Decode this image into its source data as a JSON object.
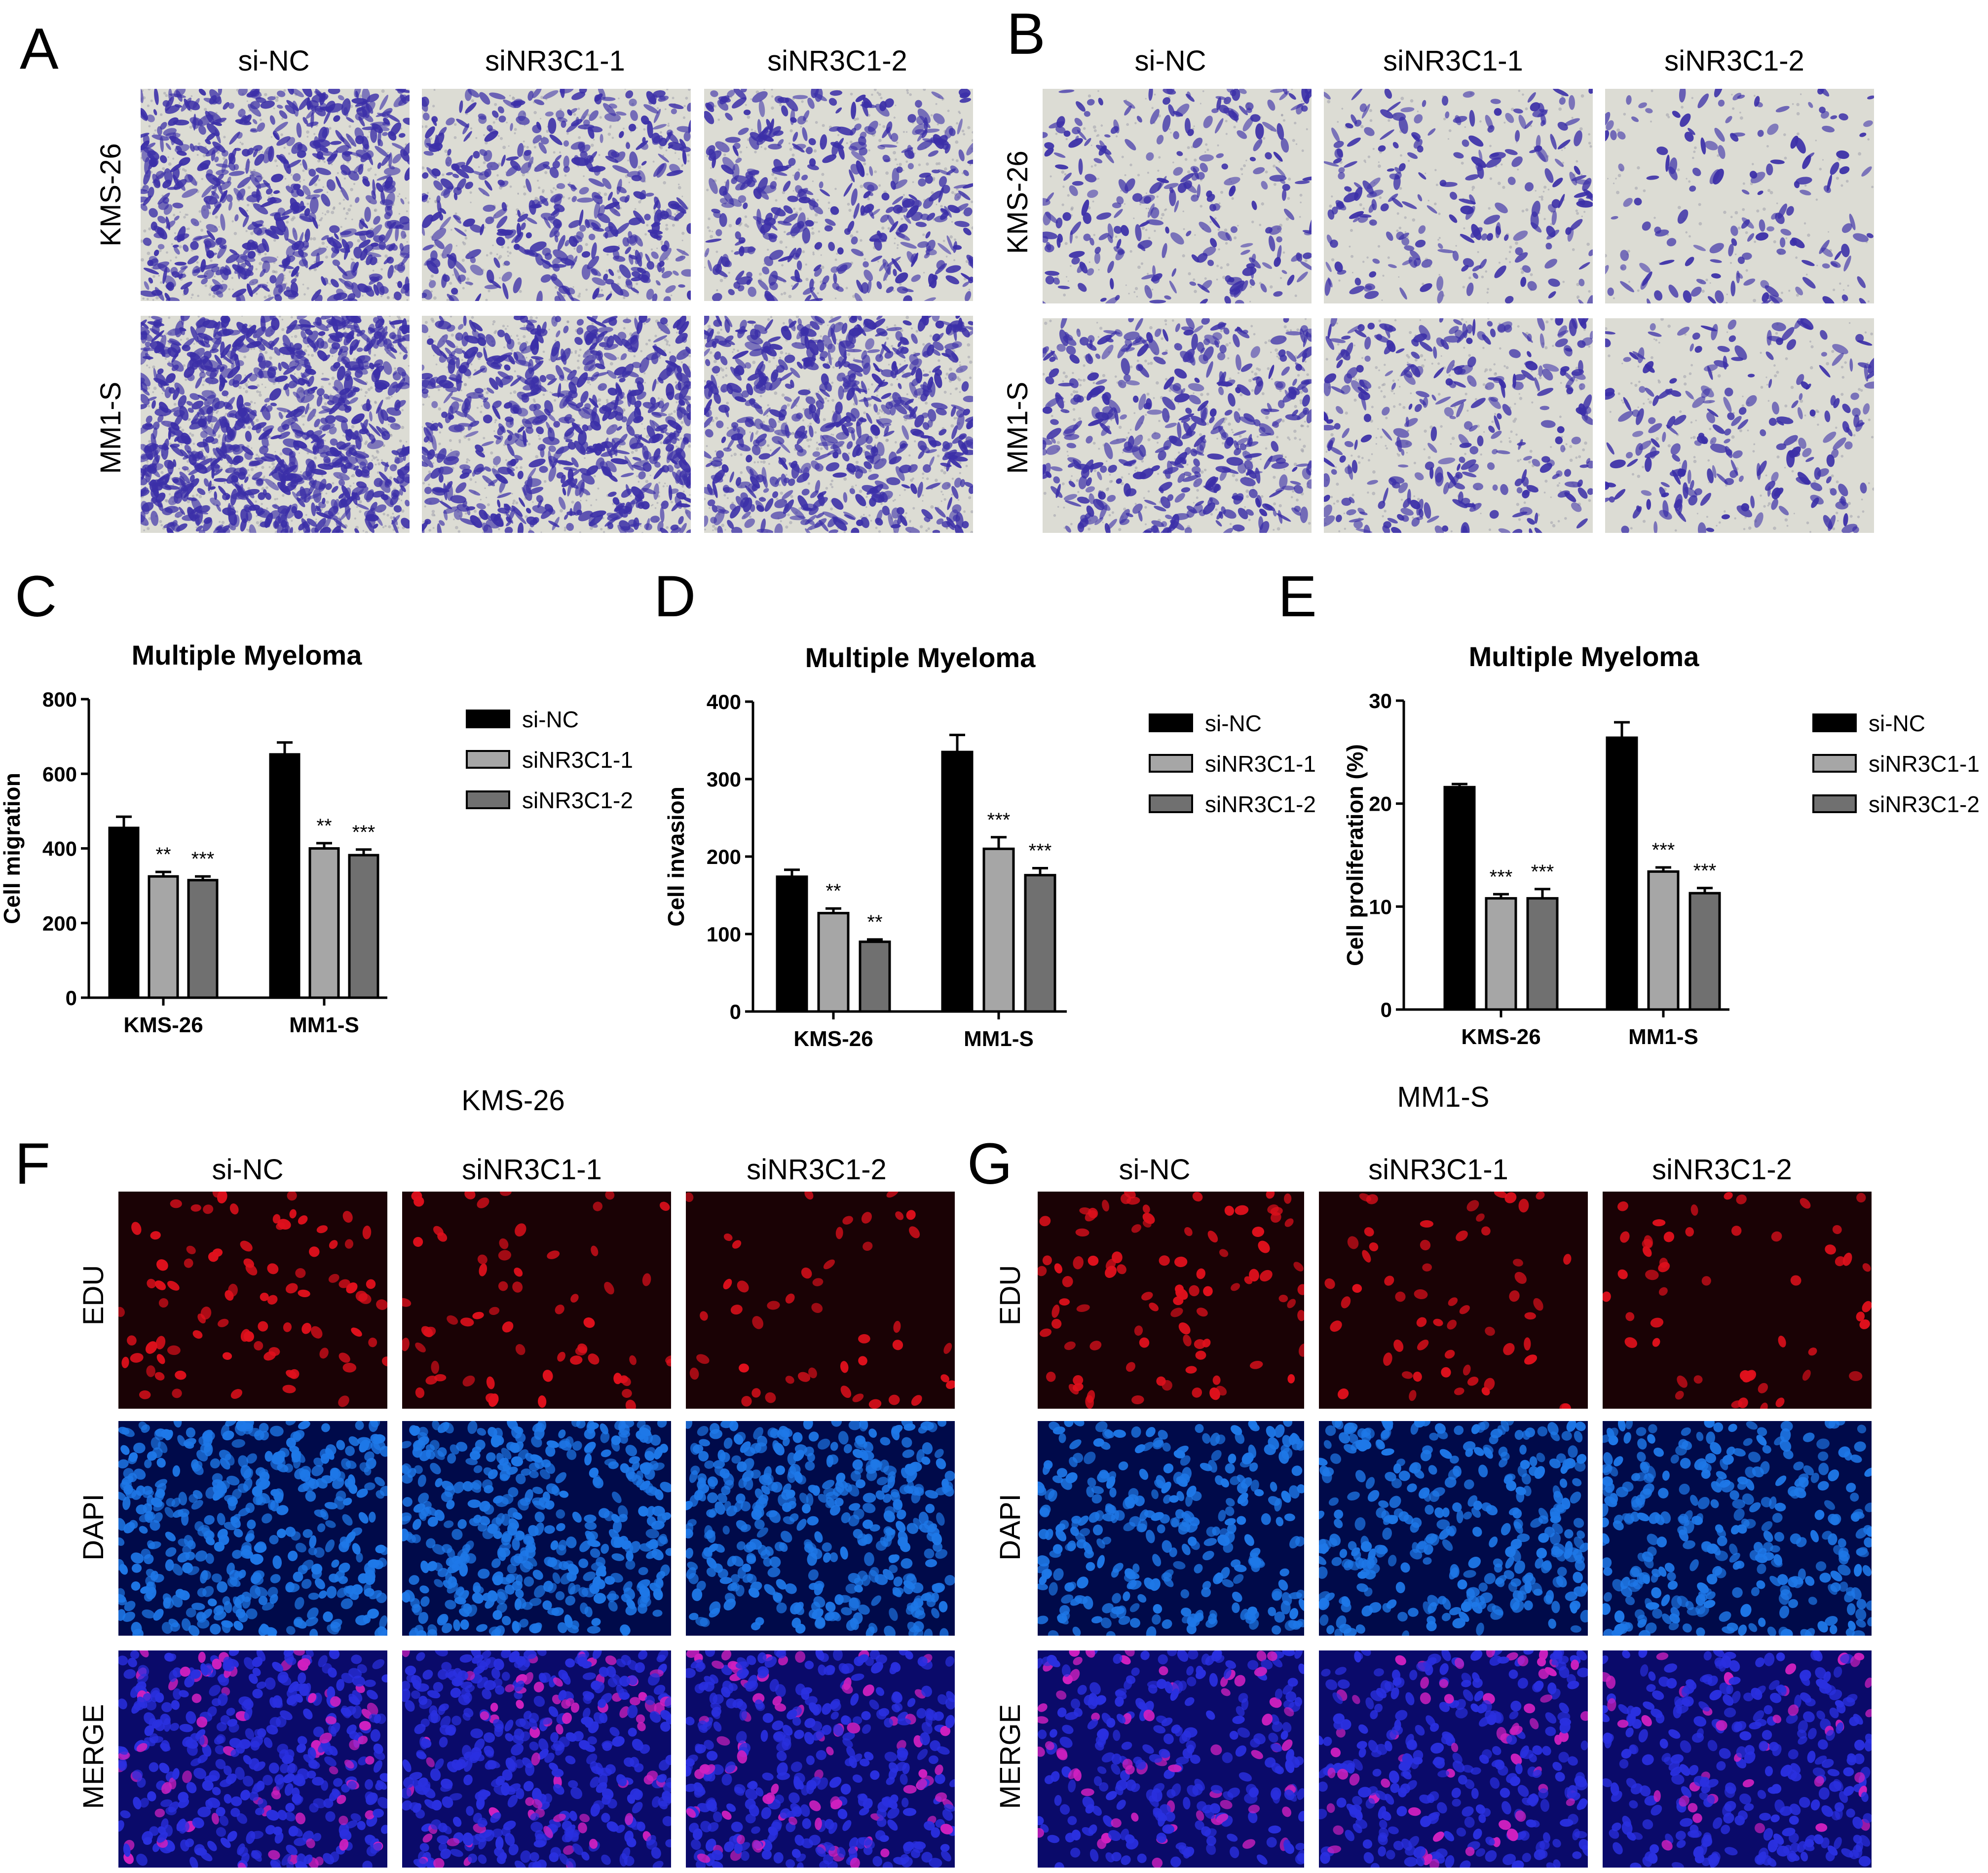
{
  "panels": {
    "A": {
      "letter": "A",
      "columns": [
        "si-NC",
        "siNR3C1-1",
        "siNR3C1-2"
      ],
      "rows": [
        "KMS-26",
        "MM1-S"
      ]
    },
    "B": {
      "letter": "B",
      "columns": [
        "si-NC",
        "siNR3C1-1",
        "siNR3C1-2"
      ],
      "rows": [
        "KMS-26",
        "MM1-S"
      ]
    },
    "C": {
      "letter": "C"
    },
    "D": {
      "letter": "D"
    },
    "E": {
      "letter": "E"
    },
    "F": {
      "letter": "F",
      "group": "KMS-26",
      "columns": [
        "si-NC",
        "siNR3C1-1",
        "siNR3C1-2"
      ],
      "rows": [
        "EDU",
        "DAPI",
        "MERGE"
      ]
    },
    "G": {
      "letter": "G",
      "group": "MM1-S",
      "columns": [
        "si-NC",
        "siNR3C1-1",
        "siNR3C1-2"
      ],
      "rows": [
        "EDU",
        "DAPI",
        "MERGE"
      ]
    }
  },
  "colors": {
    "crystal_violet_bg": "#dcdcd4",
    "crystal_violet_cell": "#3b2fa8",
    "edu_bg": "#1a0205",
    "edu_cell": "#e0101c",
    "dapi_bg": "#000a4a",
    "dapi_cell": "#1e78e8",
    "merge_bg": "#0a0a6a",
    "merge_cell": "#2a30e0",
    "merge_pink": "#d020c0",
    "series_si_nc": "#000000",
    "series_sinr3c1_1": "#a6a6a6",
    "series_sinr3c1_2": "#707070"
  },
  "chart_data": [
    {
      "type": "bar",
      "title": "Multiple Myeloma",
      "ylabel": "Cell migration",
      "xlabel": "",
      "categories": [
        "KMS-26",
        "MM1-S"
      ],
      "ylim": [
        0,
        800
      ],
      "yticks": [
        "0",
        "200",
        "400",
        "600",
        "800"
      ],
      "legend_position": "right",
      "series": [
        {
          "name": "si-NC",
          "values": [
            455,
            652
          ],
          "errors": [
            30,
            32
          ],
          "sig": [
            "",
            ""
          ]
        },
        {
          "name": "siNR3C1-1",
          "values": [
            325,
            400
          ],
          "errors": [
            12,
            14
          ],
          "sig": [
            "**",
            "**"
          ]
        },
        {
          "name": "siNR3C1-2",
          "values": [
            315,
            382
          ],
          "errors": [
            10,
            15
          ],
          "sig": [
            "***",
            "***"
          ]
        }
      ]
    },
    {
      "type": "bar",
      "title": "Multiple Myeloma",
      "ylabel": "Cell invasion",
      "xlabel": "",
      "categories": [
        "KMS-26",
        "MM1-S"
      ],
      "ylim": [
        0,
        400
      ],
      "yticks": [
        "0",
        "100",
        "200",
        "300",
        "400"
      ],
      "legend_position": "right",
      "series": [
        {
          "name": "si-NC",
          "values": [
            174,
            335
          ],
          "errors": [
            9,
            22
          ],
          "sig": [
            "",
            ""
          ]
        },
        {
          "name": "siNR3C1-1",
          "values": [
            127,
            210
          ],
          "errors": [
            6,
            15
          ],
          "sig": [
            "**",
            "***"
          ]
        },
        {
          "name": "siNR3C1-2",
          "values": [
            90,
            176
          ],
          "errors": [
            3,
            9
          ],
          "sig": [
            "**",
            "***"
          ]
        }
      ]
    },
    {
      "type": "bar",
      "title": "Multiple Myeloma",
      "ylabel": "Cell proliferation (%)",
      "xlabel": "",
      "categories": [
        "KMS-26",
        "MM1-S"
      ],
      "ylim": [
        0,
        30
      ],
      "yticks": [
        "0",
        "10",
        "20",
        "30"
      ],
      "legend_position": "right",
      "series": [
        {
          "name": "si-NC",
          "values": [
            21.6,
            26.4
          ],
          "errors": [
            0.3,
            1.5
          ],
          "sig": [
            "",
            ""
          ]
        },
        {
          "name": "siNR3C1-1",
          "values": [
            10.8,
            13.4
          ],
          "errors": [
            0.4,
            0.4
          ],
          "sig": [
            "***",
            "***"
          ]
        },
        {
          "name": "siNR3C1-2",
          "values": [
            10.8,
            11.3
          ],
          "errors": [
            0.9,
            0.5
          ],
          "sig": [
            "***",
            "***"
          ]
        }
      ]
    }
  ]
}
